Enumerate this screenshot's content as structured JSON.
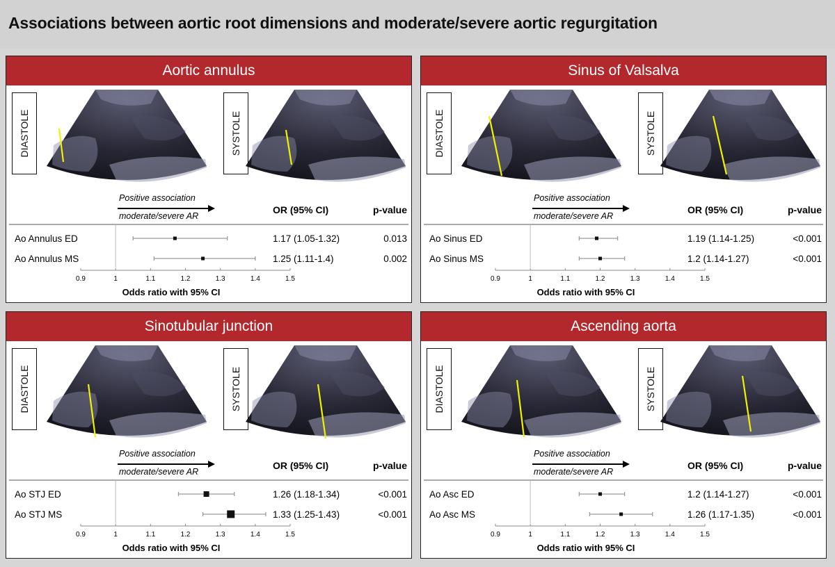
{
  "page_title": "Associations between aortic root dimensions and moderate/severe aortic regurgitation",
  "common": {
    "phase_left": "DIASTOLE",
    "phase_right": "SYSTOLE",
    "assoc_line1": "Positive association",
    "assoc_line2": "moderate/severe AR",
    "or_header": "OR (95% CI)",
    "p_header": "p-value",
    "xlabel": "Odds ratio with 95% CI",
    "colors": {
      "header_red": "#b3282d",
      "measure_line": "#f2f200",
      "marker": "#111111",
      "ci_line": "#9a9a9a"
    }
  },
  "panels": [
    {
      "title": "Aortic annulus",
      "chart_data": {
        "type": "forest",
        "xlim": [
          0.9,
          1.5
        ],
        "ref_line": 1,
        "xticks": [
          "0.9",
          "1",
          "1.1",
          "1.2",
          "1.3",
          "1.4",
          "1.5"
        ],
        "rows": [
          {
            "label": "Ao Annulus ED",
            "or": 1.17,
            "lo": 1.05,
            "hi": 1.32,
            "or_text": "1.17 (1.05-1.32)",
            "p_text": "0.013",
            "weight": 1
          },
          {
            "label": "Ao Annulus MS",
            "or": 1.25,
            "lo": 1.11,
            "hi": 1.4,
            "or_text": "1.25 (1.11-1.4)",
            "p_text": "0.002",
            "weight": 1
          }
        ]
      }
    },
    {
      "title": "Sinus of Valsalva",
      "chart_data": {
        "type": "forest",
        "xlim": [
          0.9,
          1.5
        ],
        "ref_line": 1,
        "xticks": [
          "0.9",
          "1",
          "1.1",
          "1.2",
          "1.3",
          "1.4",
          "1.5"
        ],
        "rows": [
          {
            "label": "Ao Sinus ED",
            "or": 1.19,
            "lo": 1.14,
            "hi": 1.25,
            "or_text": "1.19 (1.14-1.25)",
            "p_text": "<0.001",
            "weight": 1
          },
          {
            "label": "Ao Sinus MS",
            "or": 1.2,
            "lo": 1.14,
            "hi": 1.27,
            "or_text": "1.2 (1.14-1.27)",
            "p_text": "<0.001",
            "weight": 1
          }
        ]
      }
    },
    {
      "title": "Sinotubular junction",
      "chart_data": {
        "type": "forest",
        "xlim": [
          0.9,
          1.5
        ],
        "ref_line": 1,
        "xticks": [
          "0.9",
          "1",
          "1.1",
          "1.2",
          "1.3",
          "1.4",
          "1.5"
        ],
        "rows": [
          {
            "label": "Ao STJ ED",
            "or": 1.26,
            "lo": 1.18,
            "hi": 1.34,
            "or_text": "1.26 (1.18-1.34)",
            "p_text": "<0.001",
            "weight": 1.6
          },
          {
            "label": "Ao STJ MS",
            "or": 1.33,
            "lo": 1.25,
            "hi": 1.43,
            "or_text": "1.33 (1.25-1.43)",
            "p_text": "<0.001",
            "weight": 2.2
          }
        ]
      }
    },
    {
      "title": "Ascending aorta",
      "chart_data": {
        "type": "forest",
        "xlim": [
          0.9,
          1.5
        ],
        "ref_line": 1,
        "xticks": [
          "0.9",
          "1",
          "1.1",
          "1.2",
          "1.3",
          "1.4",
          "1.5"
        ],
        "rows": [
          {
            "label": "Ao Asc ED",
            "or": 1.2,
            "lo": 1.14,
            "hi": 1.27,
            "or_text": "1.2 (1.14-1.27)",
            "p_text": "<0.001",
            "weight": 1
          },
          {
            "label": "Ao Asc MS",
            "or": 1.26,
            "lo": 1.17,
            "hi": 1.35,
            "or_text": "1.26 (1.17-1.35)",
            "p_text": "<0.001",
            "weight": 1
          }
        ]
      }
    }
  ]
}
